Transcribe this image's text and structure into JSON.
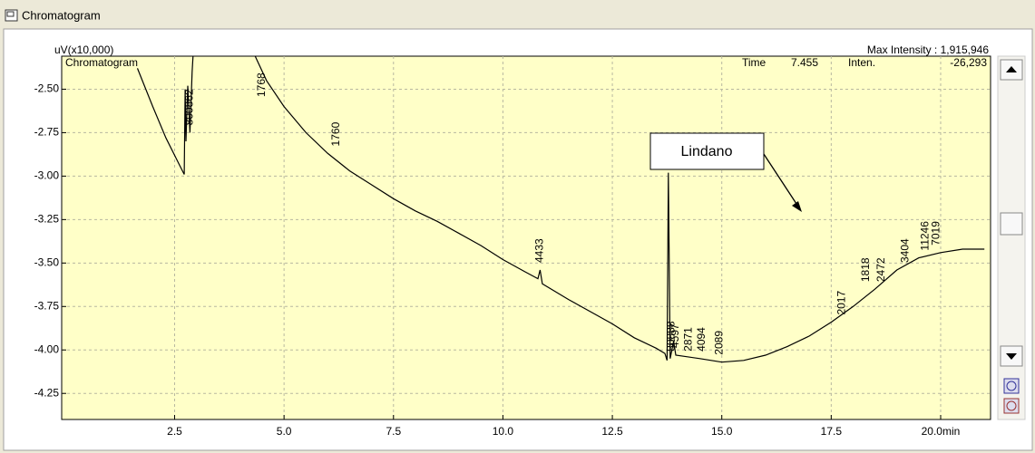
{
  "window_title": "Chromatogram",
  "chart_data": {
    "type": "line",
    "y_axis_label": "uV(x10,000)",
    "max_intensity_label": "Max Intensity : 1,915,946",
    "series_label": "Chromatogram",
    "cursor": {
      "time_label": "Time",
      "time": "7.455",
      "inten_label": "Inten.",
      "inten": "-26,293"
    },
    "annotation": "Lindano",
    "color": "#000000",
    "grid": true,
    "xlim": [
      -0.08,
      21.14
    ],
    "ylim": [
      -4.4,
      -2.31
    ],
    "xticks": [
      {
        "value": 2.5,
        "label": "2.5"
      },
      {
        "value": 5,
        "label": "5.0"
      },
      {
        "value": 7.5,
        "label": "7.5"
      },
      {
        "value": 10,
        "label": "10.0"
      },
      {
        "value": 12.5,
        "label": "12.5"
      },
      {
        "value": 15,
        "label": "15.0"
      },
      {
        "value": 17.5,
        "label": "17.5"
      },
      {
        "value": 20,
        "label": "20.0min"
      }
    ],
    "yticks": [
      {
        "value": -2.5,
        "label": "-2.50"
      },
      {
        "value": -2.75,
        "label": "-2.75"
      },
      {
        "value": -3,
        "label": "-3.00"
      },
      {
        "value": -3.25,
        "label": "-3.25"
      },
      {
        "value": -3.5,
        "label": "-3.50"
      },
      {
        "value": -3.75,
        "label": "-3.75"
      },
      {
        "value": -4,
        "label": "-4.00"
      },
      {
        "value": -4.25,
        "label": "-4.25"
      }
    ],
    "x": [
      1.65,
      2.0,
      2.3,
      2.6,
      2.72,
      2.74,
      2.76,
      2.8,
      2.85,
      2.9,
      2.92,
      null,
      4.34,
      4.6,
      5.0,
      5.5,
      6.0,
      6.5,
      7.0,
      7.5,
      8.0,
      8.5,
      9.0,
      9.5,
      10.0,
      10.5,
      10.8,
      10.85,
      10.9,
      11.5,
      12.0,
      12.5,
      13.0,
      13.5,
      13.7,
      13.75,
      13.78,
      13.82,
      13.9,
      13.95,
      14.5,
      15.0,
      15.5,
      16.0,
      16.5,
      17.0,
      17.5,
      18.0,
      18.5,
      19.0,
      19.5,
      20.0,
      20.5,
      21.0
    ],
    "values": [
      -2.38,
      -2.6,
      -2.78,
      -2.93,
      -2.99,
      -2.5,
      -2.8,
      -2.48,
      -2.75,
      -2.4,
      -2.31,
      null,
      -2.31,
      -2.45,
      -2.6,
      -2.75,
      -2.87,
      -2.97,
      -3.05,
      -3.13,
      -3.2,
      -3.26,
      -3.33,
      -3.4,
      -3.48,
      -3.55,
      -3.59,
      -3.54,
      -3.62,
      -3.71,
      -3.78,
      -3.85,
      -3.93,
      -3.99,
      -4.02,
      -4.06,
      -2.98,
      -4.05,
      -3.95,
      -4.03,
      -4.05,
      -4.07,
      -4.06,
      -4.03,
      -3.98,
      -3.92,
      -3.84,
      -3.75,
      -3.65,
      -3.54,
      -3.47,
      -3.44,
      -3.42,
      -3.42
    ],
    "peaks": [
      {
        "x": 2.85,
        "label": "800862"
      },
      {
        "x": 4.5,
        "label": "1768"
      },
      {
        "x": 6.2,
        "label": "1760"
      },
      {
        "x": 10.85,
        "label": "4433"
      },
      {
        "x": 13.85,
        "label": "80888"
      },
      {
        "x": 13.95,
        "label": "4597"
      },
      {
        "x": 14.25,
        "label": "2871"
      },
      {
        "x": 14.55,
        "label": "4094"
      },
      {
        "x": 14.95,
        "label": "2089"
      },
      {
        "x": 17.75,
        "label": "2017"
      },
      {
        "x": 18.3,
        "label": "1818"
      },
      {
        "x": 18.65,
        "label": "2472"
      },
      {
        "x": 19.2,
        "label": "3404"
      },
      {
        "x": 19.65,
        "label": "11246"
      },
      {
        "x": 19.9,
        "label": "7019"
      }
    ]
  }
}
